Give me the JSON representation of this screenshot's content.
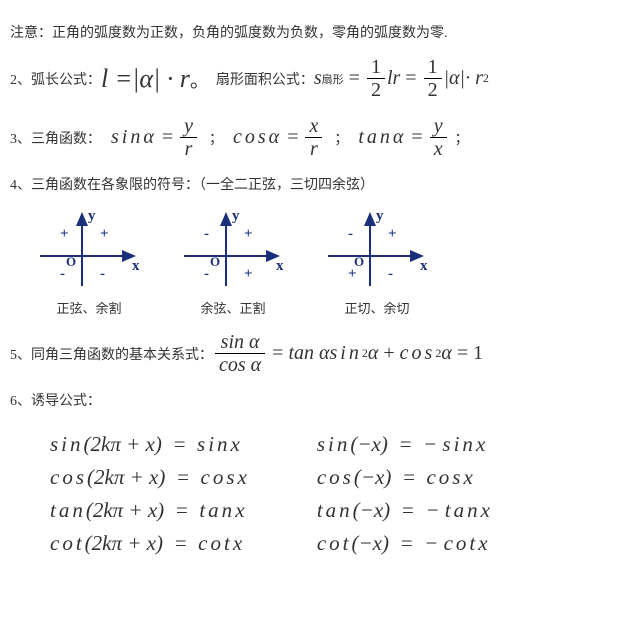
{
  "note": "注意：正角的弧度数为正数，负角的弧度数为负数，零角的弧度数为零.",
  "item2_label": "2、弧长公式：",
  "item2_formula_l": "l =",
  "item2_formula_alpha": "|α|",
  "item2_formula_dot_r": " · r",
  "item2_period": "。",
  "item2_sector_label": "扇形面积公式：",
  "sector": {
    "s": "s",
    "sub": "扇形",
    "eq": " = ",
    "half_num": "1",
    "half_den": "2",
    "lr": "lr",
    "eq2": " = ",
    "alpha_abs": "|α|",
    "dot_r2": "· r",
    "sq": "2"
  },
  "item3_label": "3、三角函数：",
  "trig_defs": {
    "sin_lhs": "sinα",
    "sin_num": "y",
    "sin_den": "r",
    "cos_lhs": "cosα",
    "cos_num": "x",
    "cos_den": "r",
    "tan_lhs": "tanα",
    "tan_num": "y",
    "tan_den": "x",
    "eq": " = ",
    "semicolon": "；"
  },
  "item4": "4、三角函数在各象限的符号：（一全二正弦，三切四余弦）",
  "diagrams": {
    "axis_color": "#1b2f7a",
    "x": "x",
    "y": "y",
    "o": "O",
    "plus": "+",
    "minus": "-",
    "sets": [
      {
        "signs": [
          "+",
          "+",
          "-",
          "-"
        ],
        "caption": "正弦、余割"
      },
      {
        "signs": [
          "-",
          "+",
          "-",
          "+"
        ],
        "caption": "余弦、正割"
      },
      {
        "signs": [
          "-",
          "+",
          "+",
          "-"
        ],
        "caption": "正切、余切"
      }
    ]
  },
  "item5_label": "5、同角三角函数的基本关系式：",
  "item5": {
    "frac_num": "sin α",
    "frac_den": "cos α",
    "eq": " = ",
    "tan": "tan α",
    "gap": "        ",
    "pyth_sin": "sin",
    "pyth_cos": "cos",
    "alpha": "α",
    "sq": "2",
    "plus": " + ",
    "eq1": " = 1"
  },
  "item6": "6、诱导公式：",
  "induction": {
    "left": [
      {
        "fn": "sin",
        "arg": "(2kπ + x)",
        "eq": " = ",
        "rhs_fn": "sin",
        "rhs_arg": "x"
      },
      {
        "fn": "cos",
        "arg": "(2kπ + x)",
        "eq": " = ",
        "rhs_fn": "cos",
        "rhs_arg": "x"
      },
      {
        "fn": "tan",
        "arg": "(2kπ + x)",
        "eq": " = ",
        "rhs_fn": "tan",
        "rhs_arg": "x"
      },
      {
        "fn": "cot",
        "arg": "(2kπ + x)",
        "eq": " = ",
        "rhs_fn": "cot",
        "rhs_arg": "x"
      }
    ],
    "right": [
      {
        "fn": "sin",
        "arg": "(−x)",
        "eq": " = ",
        "neg": "− ",
        "rhs_fn": "sin",
        "rhs_arg": "x"
      },
      {
        "fn": "cos",
        "arg": "(−x)",
        "eq": " = ",
        "neg": "",
        "rhs_fn": "cos",
        "rhs_arg": "x"
      },
      {
        "fn": "tan",
        "arg": "(−x)",
        "eq": " = ",
        "neg": "− ",
        "rhs_fn": "tan",
        "rhs_arg": "x"
      },
      {
        "fn": "cot",
        "arg": "(−x)",
        "eq": " = ",
        "neg": "− ",
        "rhs_fn": "cot",
        "rhs_arg": "x"
      }
    ]
  }
}
